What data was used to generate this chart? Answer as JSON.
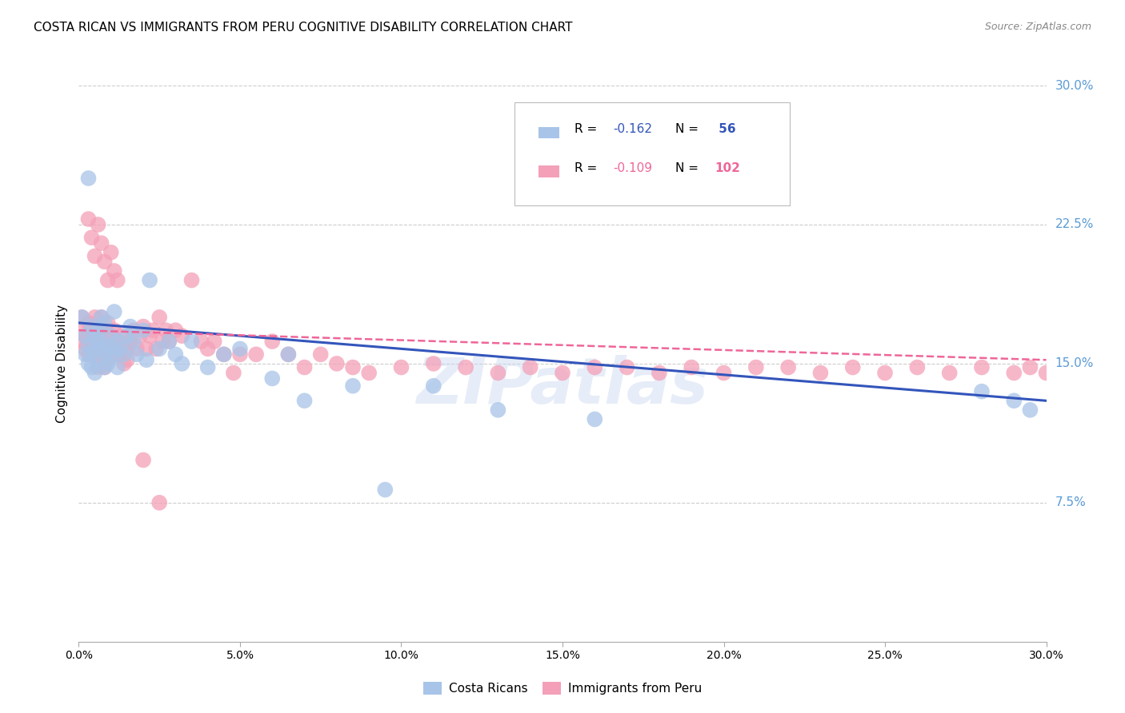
{
  "title": "COSTA RICAN VS IMMIGRANTS FROM PERU COGNITIVE DISABILITY CORRELATION CHART",
  "source": "Source: ZipAtlas.com",
  "ylabel": "Cognitive Disability",
  "watermark": "ZIPatlas",
  "xlim": [
    0.0,
    0.3
  ],
  "ylim": [
    0.0,
    0.3
  ],
  "yticks_right": [
    0.075,
    0.15,
    0.225,
    0.3
  ],
  "ytick_labels_right": [
    "7.5%",
    "15.0%",
    "22.5%",
    "30.0%"
  ],
  "xtick_vals": [
    0.0,
    0.05,
    0.1,
    0.15,
    0.2,
    0.25,
    0.3
  ],
  "xtick_labels": [
    "0.0%",
    "5.0%",
    "10.0%",
    "15.0%",
    "20.0%",
    "25.0%",
    "30.0%"
  ],
  "grid_color": "#cccccc",
  "background_color": "#ffffff",
  "color_cr": "#A8C4E8",
  "color_peru": "#F4A0B8",
  "trendline_color_cr": "#3355BB",
  "trendline_color_peru": "#EE6699",
  "legend_text_color_cr": "#3355BB",
  "legend_text_color_peru": "#EE6699",
  "cr_x": [
    0.001,
    0.002,
    0.002,
    0.003,
    0.003,
    0.004,
    0.004,
    0.004,
    0.005,
    0.005,
    0.005,
    0.006,
    0.006,
    0.006,
    0.007,
    0.007,
    0.008,
    0.008,
    0.008,
    0.009,
    0.009,
    0.01,
    0.01,
    0.011,
    0.011,
    0.012,
    0.012,
    0.013,
    0.014,
    0.015,
    0.016,
    0.017,
    0.018,
    0.02,
    0.021,
    0.022,
    0.025,
    0.028,
    0.03,
    0.032,
    0.035,
    0.04,
    0.045,
    0.05,
    0.06,
    0.065,
    0.07,
    0.085,
    0.095,
    0.11,
    0.13,
    0.16,
    0.28,
    0.29,
    0.295,
    0.003
  ],
  "cr_y": [
    0.175,
    0.165,
    0.155,
    0.16,
    0.15,
    0.17,
    0.155,
    0.148,
    0.165,
    0.158,
    0.145,
    0.162,
    0.152,
    0.168,
    0.175,
    0.158,
    0.16,
    0.148,
    0.172,
    0.155,
    0.15,
    0.158,
    0.165,
    0.178,
    0.155,
    0.162,
    0.148,
    0.158,
    0.155,
    0.165,
    0.17,
    0.162,
    0.155,
    0.168,
    0.152,
    0.195,
    0.158,
    0.162,
    0.155,
    0.15,
    0.162,
    0.148,
    0.155,
    0.158,
    0.142,
    0.155,
    0.13,
    0.138,
    0.082,
    0.138,
    0.125,
    0.12,
    0.135,
    0.13,
    0.125,
    0.25
  ],
  "peru_x": [
    0.001,
    0.001,
    0.002,
    0.002,
    0.002,
    0.003,
    0.003,
    0.003,
    0.004,
    0.004,
    0.004,
    0.005,
    0.005,
    0.005,
    0.006,
    0.006,
    0.006,
    0.007,
    0.007,
    0.007,
    0.008,
    0.008,
    0.008,
    0.009,
    0.009,
    0.009,
    0.01,
    0.01,
    0.011,
    0.011,
    0.012,
    0.012,
    0.013,
    0.013,
    0.014,
    0.014,
    0.015,
    0.015,
    0.016,
    0.017,
    0.018,
    0.019,
    0.02,
    0.021,
    0.022,
    0.023,
    0.024,
    0.025,
    0.026,
    0.027,
    0.028,
    0.03,
    0.032,
    0.035,
    0.038,
    0.04,
    0.042,
    0.045,
    0.048,
    0.05,
    0.055,
    0.06,
    0.065,
    0.07,
    0.075,
    0.08,
    0.085,
    0.09,
    0.1,
    0.11,
    0.12,
    0.13,
    0.14,
    0.15,
    0.16,
    0.17,
    0.18,
    0.19,
    0.2,
    0.21,
    0.22,
    0.23,
    0.24,
    0.25,
    0.26,
    0.27,
    0.28,
    0.29,
    0.295,
    0.3,
    0.003,
    0.004,
    0.005,
    0.006,
    0.007,
    0.008,
    0.009,
    0.01,
    0.011,
    0.012,
    0.02,
    0.025
  ],
  "peru_y": [
    0.175,
    0.162,
    0.17,
    0.158,
    0.165,
    0.172,
    0.16,
    0.155,
    0.168,
    0.158,
    0.162,
    0.175,
    0.165,
    0.155,
    0.168,
    0.158,
    0.148,
    0.175,
    0.162,
    0.155,
    0.168,
    0.158,
    0.148,
    0.172,
    0.16,
    0.152,
    0.165,
    0.155,
    0.168,
    0.158,
    0.162,
    0.155,
    0.165,
    0.155,
    0.16,
    0.15,
    0.158,
    0.152,
    0.162,
    0.168,
    0.158,
    0.165,
    0.17,
    0.158,
    0.165,
    0.168,
    0.158,
    0.175,
    0.162,
    0.168,
    0.162,
    0.168,
    0.165,
    0.195,
    0.162,
    0.158,
    0.162,
    0.155,
    0.145,
    0.155,
    0.155,
    0.162,
    0.155,
    0.148,
    0.155,
    0.15,
    0.148,
    0.145,
    0.148,
    0.15,
    0.148,
    0.145,
    0.148,
    0.145,
    0.148,
    0.148,
    0.145,
    0.148,
    0.145,
    0.148,
    0.148,
    0.145,
    0.148,
    0.145,
    0.148,
    0.145,
    0.148,
    0.145,
    0.148,
    0.145,
    0.228,
    0.218,
    0.208,
    0.225,
    0.215,
    0.205,
    0.195,
    0.21,
    0.2,
    0.195,
    0.098,
    0.075
  ]
}
